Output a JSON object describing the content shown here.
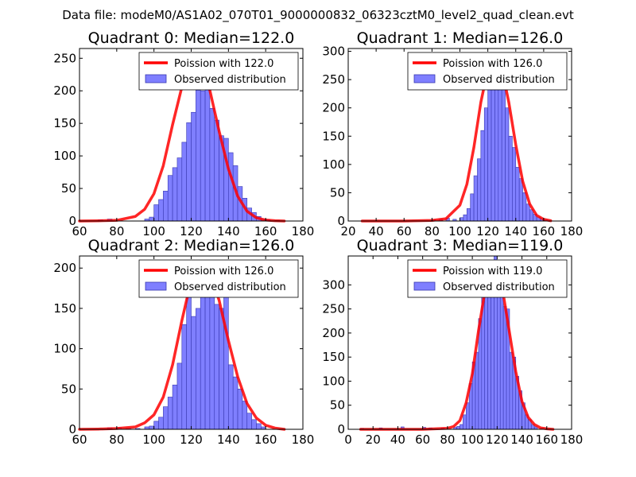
{
  "figure": {
    "suptitle": "Data file: modeM0/AS1A02_070T01_9000000832_06323cztM0_level2_quad_clean.evt",
    "colors": {
      "hist_fill": "#7f7fff",
      "hist_edge": "#3838b0",
      "curve": "#ff0000",
      "frame": "#000000"
    }
  },
  "chart_data": [
    {
      "type": "bar",
      "title": "Quadrant 0: Median=122.0",
      "median": 122.0,
      "xlim": [
        60,
        180
      ],
      "ylim": [
        0,
        265
      ],
      "xticks": [
        60,
        80,
        100,
        120,
        140,
        160,
        180
      ],
      "yticks": [
        0,
        50,
        100,
        150,
        200,
        250
      ],
      "legend": {
        "curve_label": "Poission with 122.0",
        "hist_label": "Observed distribution",
        "location": "upper-right"
      },
      "bin_width": 2.5,
      "bins": [
        {
          "x": 70,
          "count": 2
        },
        {
          "x": 75,
          "count": 3
        },
        {
          "x": 95,
          "count": 3
        },
        {
          "x": 97.5,
          "count": 6
        },
        {
          "x": 100,
          "count": 25
        },
        {
          "x": 102.5,
          "count": 33
        },
        {
          "x": 105,
          "count": 46
        },
        {
          "x": 107.5,
          "count": 70
        },
        {
          "x": 110,
          "count": 82
        },
        {
          "x": 112.5,
          "count": 97
        },
        {
          "x": 115,
          "count": 121
        },
        {
          "x": 117.5,
          "count": 151
        },
        {
          "x": 120,
          "count": 167
        },
        {
          "x": 122.5,
          "count": 201
        },
        {
          "x": 125,
          "count": 200
        },
        {
          "x": 127.5,
          "count": 253
        },
        {
          "x": 130,
          "count": 173
        },
        {
          "x": 132.5,
          "count": 155
        },
        {
          "x": 135,
          "count": 131
        },
        {
          "x": 137.5,
          "count": 127
        },
        {
          "x": 140,
          "count": 105
        },
        {
          "x": 142.5,
          "count": 85
        },
        {
          "x": 145,
          "count": 53
        },
        {
          "x": 147.5,
          "count": 35
        },
        {
          "x": 150,
          "count": 20
        },
        {
          "x": 152.5,
          "count": 13
        },
        {
          "x": 155,
          "count": 7
        },
        {
          "x": 157.5,
          "count": 3
        },
        {
          "x": 160,
          "count": 2
        },
        {
          "x": 165,
          "count": 1
        }
      ],
      "curve": {
        "x": [
          60,
          70,
          80,
          90,
          95,
          100,
          105,
          110,
          115,
          120,
          122,
          125,
          130,
          135,
          140,
          145,
          150,
          155,
          160,
          165,
          170
        ],
        "y": [
          0,
          0.3,
          1,
          7,
          18,
          42,
          85,
          148,
          206,
          238,
          241,
          236,
          201,
          138,
          80,
          38,
          15,
          5,
          1.5,
          0.4,
          0
        ]
      }
    },
    {
      "type": "bar",
      "title": "Quadrant 1: Median=126.0",
      "median": 126.0,
      "xlim": [
        20,
        180
      ],
      "ylim": [
        0,
        305
      ],
      "xticks": [
        20,
        40,
        60,
        80,
        100,
        120,
        140,
        160,
        180
      ],
      "yticks": [
        0,
        50,
        100,
        150,
        200,
        250,
        300
      ],
      "legend": {
        "curve_label": "Poission with 126.0",
        "hist_label": "Observed distribution",
        "location": "upper-right"
      },
      "bin_width": 2.5,
      "bins": [
        {
          "x": 80,
          "count": 2
        },
        {
          "x": 85,
          "count": 3
        },
        {
          "x": 90,
          "count": 5
        },
        {
          "x": 95,
          "count": 3
        },
        {
          "x": 100,
          "count": 6
        },
        {
          "x": 102.5,
          "count": 11
        },
        {
          "x": 105,
          "count": 22
        },
        {
          "x": 107.5,
          "count": 48
        },
        {
          "x": 110,
          "count": 80
        },
        {
          "x": 112.5,
          "count": 110
        },
        {
          "x": 115,
          "count": 160
        },
        {
          "x": 117.5,
          "count": 200
        },
        {
          "x": 120,
          "count": 240
        },
        {
          "x": 122.5,
          "count": 290
        },
        {
          "x": 125,
          "count": 270
        },
        {
          "x": 127.5,
          "count": 245
        },
        {
          "x": 130,
          "count": 280
        },
        {
          "x": 132.5,
          "count": 200
        },
        {
          "x": 135,
          "count": 150
        },
        {
          "x": 137.5,
          "count": 130
        },
        {
          "x": 140,
          "count": 95
        },
        {
          "x": 142.5,
          "count": 75
        },
        {
          "x": 145,
          "count": 50
        },
        {
          "x": 147.5,
          "count": 30
        },
        {
          "x": 150,
          "count": 20
        },
        {
          "x": 152.5,
          "count": 12
        },
        {
          "x": 155,
          "count": 7
        },
        {
          "x": 157.5,
          "count": 4
        },
        {
          "x": 160,
          "count": 2
        }
      ],
      "curve": {
        "x": [
          30,
          60,
          80,
          90,
          100,
          105,
          110,
          115,
          120,
          126,
          130,
          135,
          140,
          145,
          150,
          155,
          160,
          165
        ],
        "y": [
          0,
          0,
          1,
          4,
          28,
          65,
          130,
          210,
          268,
          290,
          270,
          210,
          135,
          70,
          30,
          10,
          3,
          0.5
        ]
      }
    },
    {
      "type": "bar",
      "title": "Quadrant 2: Median=126.0",
      "median": 126.0,
      "xlim": [
        60,
        180
      ],
      "ylim": [
        0,
        215
      ],
      "xticks": [
        60,
        80,
        100,
        120,
        140,
        160,
        180
      ],
      "yticks": [
        0,
        50,
        100,
        150,
        200
      ],
      "legend": {
        "curve_label": "Poission with 126.0",
        "hist_label": "Observed distribution",
        "location": "upper-right"
      },
      "bin_width": 2.5,
      "bins": [
        {
          "x": 75,
          "count": 2
        },
        {
          "x": 80,
          "count": 2
        },
        {
          "x": 85,
          "count": 1
        },
        {
          "x": 90,
          "count": 1
        },
        {
          "x": 95,
          "count": 3
        },
        {
          "x": 97.5,
          "count": 4
        },
        {
          "x": 100,
          "count": 10
        },
        {
          "x": 102.5,
          "count": 15
        },
        {
          "x": 105,
          "count": 28
        },
        {
          "x": 107.5,
          "count": 40
        },
        {
          "x": 110,
          "count": 55
        },
        {
          "x": 112.5,
          "count": 82
        },
        {
          "x": 115,
          "count": 130
        },
        {
          "x": 117.5,
          "count": 165
        },
        {
          "x": 120,
          "count": 140
        },
        {
          "x": 122.5,
          "count": 150
        },
        {
          "x": 125,
          "count": 200
        },
        {
          "x": 127.5,
          "count": 190
        },
        {
          "x": 130,
          "count": 170
        },
        {
          "x": 132.5,
          "count": 155
        },
        {
          "x": 135,
          "count": 150
        },
        {
          "x": 137.5,
          "count": 165
        },
        {
          "x": 140,
          "count": 80
        },
        {
          "x": 142.5,
          "count": 65
        },
        {
          "x": 145,
          "count": 50
        },
        {
          "x": 147.5,
          "count": 35
        },
        {
          "x": 150,
          "count": 20
        },
        {
          "x": 152.5,
          "count": 12
        },
        {
          "x": 155,
          "count": 7
        },
        {
          "x": 157.5,
          "count": 3
        }
      ],
      "curve": {
        "x": [
          60,
          70,
          80,
          90,
          95,
          100,
          105,
          110,
          115,
          120,
          126,
          130,
          135,
          140,
          145,
          150,
          155,
          160,
          165,
          170
        ],
        "y": [
          0,
          0.3,
          1,
          3,
          8,
          18,
          40,
          80,
          135,
          185,
          205,
          195,
          160,
          110,
          65,
          32,
          14,
          5,
          1.5,
          0
        ]
      }
    },
    {
      "type": "bar",
      "title": "Quadrant 3: Median=119.0",
      "median": 119.0,
      "xlim": [
        0,
        180
      ],
      "ylim": [
        0,
        360
      ],
      "xticks": [
        0,
        20,
        40,
        60,
        80,
        100,
        120,
        140,
        160,
        180
      ],
      "yticks": [
        0,
        50,
        100,
        150,
        200,
        250,
        300
      ],
      "legend": {
        "curve_label": "Poission with 119.0",
        "hist_label": "Observed distribution",
        "location": "upper-right"
      },
      "bin_width": 2.5,
      "bins": [
        {
          "x": 10,
          "count": 2
        },
        {
          "x": 25,
          "count": 3
        },
        {
          "x": 42.5,
          "count": 5
        },
        {
          "x": 60,
          "count": 4
        },
        {
          "x": 65,
          "count": 3
        },
        {
          "x": 75,
          "count": 3
        },
        {
          "x": 85,
          "count": 4
        },
        {
          "x": 87.5,
          "count": 6
        },
        {
          "x": 90,
          "count": 10
        },
        {
          "x": 92.5,
          "count": 30
        },
        {
          "x": 95,
          "count": 55
        },
        {
          "x": 97.5,
          "count": 95
        },
        {
          "x": 100,
          "count": 140
        },
        {
          "x": 102.5,
          "count": 160
        },
        {
          "x": 105,
          "count": 230
        },
        {
          "x": 107.5,
          "count": 280
        },
        {
          "x": 110,
          "count": 290
        },
        {
          "x": 112.5,
          "count": 335
        },
        {
          "x": 115,
          "count": 350
        },
        {
          "x": 117.5,
          "count": 360
        },
        {
          "x": 120,
          "count": 320
        },
        {
          "x": 122.5,
          "count": 305
        },
        {
          "x": 125,
          "count": 255
        },
        {
          "x": 127.5,
          "count": 250
        },
        {
          "x": 130,
          "count": 160
        },
        {
          "x": 132.5,
          "count": 150
        },
        {
          "x": 135,
          "count": 110
        },
        {
          "x": 137.5,
          "count": 80
        },
        {
          "x": 140,
          "count": 55
        },
        {
          "x": 142.5,
          "count": 30
        },
        {
          "x": 145,
          "count": 20
        },
        {
          "x": 147.5,
          "count": 10
        },
        {
          "x": 150,
          "count": 5
        },
        {
          "x": 155,
          "count": 2
        }
      ],
      "curve": {
        "x": [
          10,
          60,
          80,
          85,
          90,
          95,
          100,
          105,
          110,
          115,
          119,
          125,
          130,
          135,
          140,
          145,
          150,
          155,
          160,
          165
        ],
        "y": [
          0,
          0,
          2,
          6,
          18,
          55,
          115,
          205,
          285,
          325,
          330,
          280,
          200,
          120,
          58,
          25,
          10,
          3,
          1,
          0
        ]
      }
    }
  ]
}
